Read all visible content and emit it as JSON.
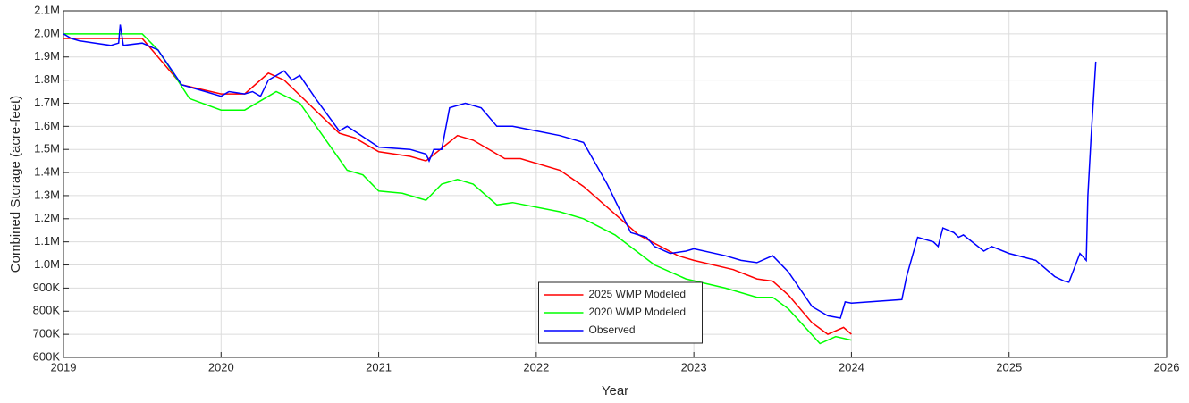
{
  "chart_data": {
    "type": "line",
    "xlabel": "Year",
    "ylabel": "Combined Storage (acre-feet)",
    "xlim": [
      2019,
      2026
    ],
    "xticks": [
      2019,
      2020,
      2021,
      2022,
      2023,
      2024,
      2025,
      2026
    ],
    "ylim": [
      600000,
      2100000
    ],
    "yticks": [
      {
        "value": 600000,
        "label": "600K"
      },
      {
        "value": 700000,
        "label": "700K"
      },
      {
        "value": 800000,
        "label": "800K"
      },
      {
        "value": 900000,
        "label": "900K"
      },
      {
        "value": 1000000,
        "label": "1.0M"
      },
      {
        "value": 1100000,
        "label": "1.1M"
      },
      {
        "value": 1200000,
        "label": "1.2M"
      },
      {
        "value": 1300000,
        "label": "1.3M"
      },
      {
        "value": 1400000,
        "label": "1.4M"
      },
      {
        "value": 1500000,
        "label": "1.5M"
      },
      {
        "value": 1600000,
        "label": "1.6M"
      },
      {
        "value": 1700000,
        "label": "1.7M"
      },
      {
        "value": 1800000,
        "label": "1.8M"
      },
      {
        "value": 1900000,
        "label": "1.9M"
      },
      {
        "value": 2000000,
        "label": "2.0M"
      },
      {
        "value": 2100000,
        "label": "2.1M"
      }
    ],
    "grid": true,
    "legend": "south",
    "series": [
      {
        "name": "2025 WMP Modeled",
        "color": "#ff0000",
        "x": [
          2019,
          2019.5,
          2019.75,
          2020,
          2020.15,
          2020.3,
          2020.4,
          2020.75,
          2020.85,
          2021,
          2021.2,
          2021.3,
          2021.5,
          2021.6,
          2021.8,
          2021.9,
          2022.15,
          2022.3,
          2022.65,
          2022.9,
          2023,
          2023.25,
          2023.4,
          2023.5,
          2023.6,
          2023.75,
          2023.85,
          2023.95,
          2024
        ],
        "values": [
          1980000,
          1980000,
          1780000,
          1740000,
          1740000,
          1830000,
          1800000,
          1570000,
          1550000,
          1490000,
          1470000,
          1450000,
          1560000,
          1540000,
          1460000,
          1460000,
          1410000,
          1340000,
          1130000,
          1040000,
          1020000,
          980000,
          940000,
          930000,
          870000,
          750000,
          700000,
          730000,
          700000
        ]
      },
      {
        "name": "2020 WMP Modeled",
        "color": "#00ff00",
        "x": [
          2019,
          2019.5,
          2019.6,
          2019.8,
          2020,
          2020.15,
          2020.3,
          2020.35,
          2020.5,
          2020.8,
          2020.9,
          2021,
          2021.15,
          2021.3,
          2021.4,
          2021.5,
          2021.6,
          2021.75,
          2021.85,
          2022.15,
          2022.3,
          2022.5,
          2022.75,
          2022.95,
          2023.2,
          2023.4,
          2023.5,
          2023.6,
          2023.8,
          2023.9,
          2024
        ],
        "values": [
          2000000,
          2000000,
          1930000,
          1720000,
          1670000,
          1670000,
          1730000,
          1750000,
          1700000,
          1410000,
          1390000,
          1320000,
          1310000,
          1280000,
          1350000,
          1370000,
          1350000,
          1260000,
          1270000,
          1230000,
          1200000,
          1130000,
          1000000,
          940000,
          900000,
          860000,
          860000,
          810000,
          660000,
          690000,
          675000
        ]
      },
      {
        "name": "Observed",
        "color": "#0000ff",
        "x": [
          2019,
          2019.05,
          2019.1,
          2019.2,
          2019.3,
          2019.35,
          2019.36,
          2019.38,
          2019.5,
          2019.6,
          2019.75,
          2019.9,
          2020,
          2020.05,
          2020.15,
          2020.2,
          2020.25,
          2020.3,
          2020.4,
          2020.45,
          2020.5,
          2020.6,
          2020.75,
          2020.8,
          2021,
          2021.2,
          2021.3,
          2021.32,
          2021.35,
          2021.4,
          2021.45,
          2021.55,
          2021.65,
          2021.75,
          2021.85,
          2022,
          2022.15,
          2022.3,
          2022.45,
          2022.6,
          2022.65,
          2022.7,
          2022.75,
          2022.85,
          2022.95,
          2023,
          2023.2,
          2023.3,
          2023.4,
          2023.5,
          2023.6,
          2023.75,
          2023.85,
          2023.93,
          2023.96,
          2024,
          2024.32,
          2024.35,
          2024.42,
          2024.52,
          2024.55,
          2024.58,
          2024.65,
          2024.68,
          2024.71,
          2024.84,
          2024.89,
          2025,
          2025.17,
          2025.29,
          2025.35,
          2025.38,
          2025.45,
          2025.49,
          2025.5,
          2025.52,
          2025.55
        ],
        "values": [
          2000000,
          1980000,
          1970000,
          1960000,
          1950000,
          1960000,
          2040000,
          1950000,
          1960000,
          1930000,
          1780000,
          1750000,
          1730000,
          1750000,
          1740000,
          1750000,
          1730000,
          1800000,
          1840000,
          1800000,
          1820000,
          1720000,
          1580000,
          1600000,
          1510000,
          1500000,
          1480000,
          1450000,
          1500000,
          1500000,
          1680000,
          1700000,
          1680000,
          1600000,
          1600000,
          1580000,
          1560000,
          1530000,
          1350000,
          1140000,
          1130000,
          1120000,
          1080000,
          1050000,
          1060000,
          1070000,
          1040000,
          1020000,
          1010000,
          1040000,
          970000,
          820000,
          780000,
          770000,
          840000,
          835000,
          850000,
          950000,
          1120000,
          1100000,
          1080000,
          1160000,
          1140000,
          1120000,
          1130000,
          1060000,
          1080000,
          1050000,
          1020000,
          950000,
          930000,
          925000,
          1050000,
          1020000,
          1300000,
          1550000,
          1880000
        ]
      }
    ]
  }
}
